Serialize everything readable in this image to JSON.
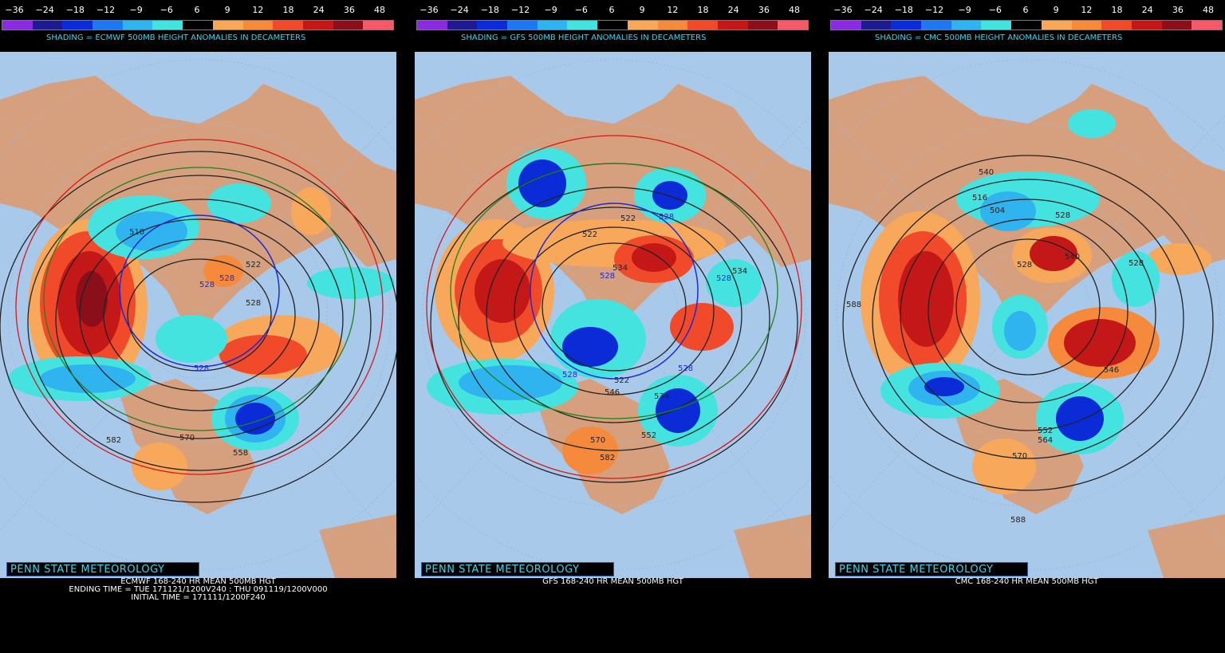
{
  "scale": {
    "labels": [
      "−36",
      "−24",
      "−18",
      "−12",
      "−9",
      "−6",
      "6",
      "9",
      "12",
      "18",
      "24",
      "36",
      "48"
    ],
    "colors": [
      "#8a2be2",
      "#1d1b8f",
      "#0a2bd6",
      "#1e78f2",
      "#2fb4f0",
      "#44e3e0",
      "#000000",
      "#f7a85a",
      "#f58a3c",
      "#f04a2a",
      "#c41818",
      "#8a0f1a",
      "#f55a6a"
    ]
  },
  "panels": [
    {
      "model": "ECMWF",
      "subtitle": "SHADING = ECMWF 500MB HEIGHT ANOMALIES IN DECAMETERS",
      "branding": "PENN STATE METEOROLOGY",
      "caption_lines": [
        "ECMWF 168-240 HR MEAN 500MB HGT",
        "ENDING TIME = TUE 171121/1200V240 : THU 091119/1200V000",
        "INITIAL TIME = 171111/1200F240"
      ],
      "contour_labels": [
        "510",
        "522",
        "528",
        "528",
        "528",
        "528",
        "582",
        "570",
        "558"
      ]
    },
    {
      "model": "GFS",
      "subtitle": "SHADING = GFS 500MB HEIGHT ANOMALIES IN DECAMETERS",
      "branding": "PENN STATE METEOROLOGY",
      "caption_lines": [
        "GFS 168-240 HR MEAN 500MB HGT"
      ],
      "contour_labels": [
        "522",
        "522",
        "528",
        "534",
        "528",
        "534",
        "528",
        "528",
        "522",
        "528",
        "534",
        "546",
        "570",
        "582",
        "552"
      ]
    },
    {
      "model": "CMC",
      "subtitle": "SHADING = CMC 500MB HEIGHT ANOMALIES IN DECAMETERS",
      "branding": "PENN STATE METEOROLOGY",
      "caption_lines": [
        "CMC 168-240 HR MEAN 500MB HGT"
      ],
      "contour_labels": [
        "540",
        "516",
        "504",
        "528",
        "528",
        "540",
        "528",
        "588",
        "552",
        "564",
        "570",
        "546",
        "588"
      ]
    }
  ]
}
